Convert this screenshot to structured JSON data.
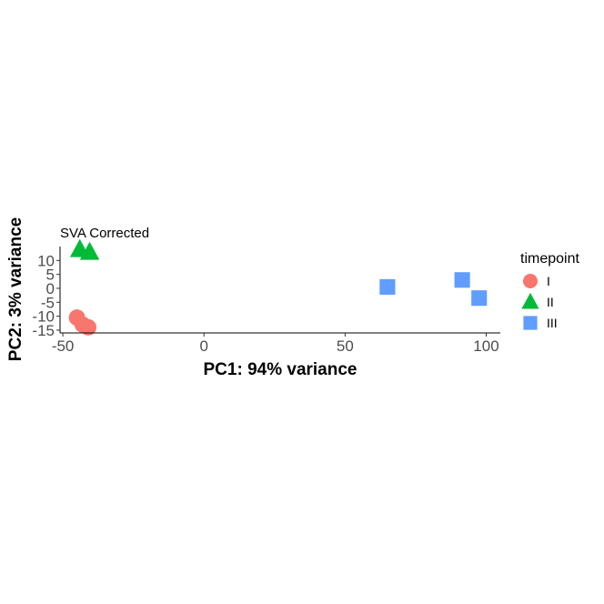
{
  "chart_data": {
    "type": "scatter",
    "title": "SVA Corrected",
    "xlabel": "PC1: 94% variance",
    "ylabel": "PC2: 3% variance",
    "xlim": [
      -51,
      105
    ],
    "ylim": [
      -16,
      15
    ],
    "x_ticks": [
      -50,
      0,
      50,
      100
    ],
    "x_tick_labels": [
      "-50",
      "0",
      "50",
      "100"
    ],
    "y_ticks": [
      10,
      5,
      0,
      -5,
      -10,
      -15
    ],
    "y_tick_labels": [
      "10",
      "5",
      "0",
      "-5",
      "-10",
      "-15"
    ],
    "grid": false,
    "legend": {
      "title": "timepoint",
      "placement": "right"
    },
    "series": [
      {
        "name": "I",
        "shape": "circle",
        "color": "#F8766D",
        "points": [
          {
            "x": -45,
            "y": -10.5
          },
          {
            "x": -43,
            "y": -13
          },
          {
            "x": -41,
            "y": -14
          }
        ]
      },
      {
        "name": "II",
        "shape": "triangle",
        "color": "#00BA38",
        "points": [
          {
            "x": -44,
            "y": 14
          },
          {
            "x": -40.5,
            "y": 13
          }
        ]
      },
      {
        "name": "III",
        "shape": "square",
        "color": "#619CFF",
        "points": [
          {
            "x": 65,
            "y": 0.5
          },
          {
            "x": 91.5,
            "y": 3
          },
          {
            "x": 97.5,
            "y": -3.5
          }
        ]
      }
    ]
  }
}
